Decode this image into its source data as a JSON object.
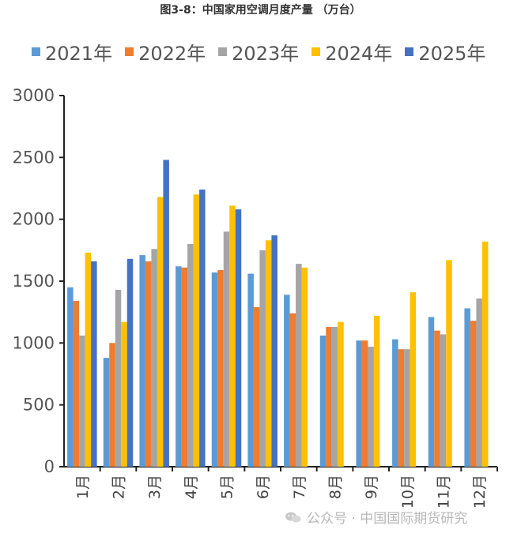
{
  "chart_data": {
    "type": "bar",
    "title": "图3-8：中国家用空调月度产量 （万台）",
    "categories": [
      "1月",
      "2月",
      "3月",
      "4月",
      "5月",
      "6月",
      "7月",
      "8月",
      "9月",
      "10月",
      "11月",
      "12月"
    ],
    "series": [
      {
        "name": "2021年",
        "color": "#5b9bd5",
        "values": [
          1450,
          880,
          1710,
          1620,
          1570,
          1560,
          1390,
          1060,
          1020,
          1030,
          1210,
          1280
        ]
      },
      {
        "name": "2022年",
        "color": "#ed7d31",
        "values": [
          1340,
          1000,
          1660,
          1610,
          1590,
          1290,
          1240,
          1130,
          1020,
          950,
          1100,
          1180
        ]
      },
      {
        "name": "2023年",
        "color": "#a5a5a5",
        "values": [
          1060,
          1430,
          1760,
          1800,
          1900,
          1750,
          1640,
          1130,
          970,
          950,
          1070,
          1360
        ]
      },
      {
        "name": "2024年",
        "color": "#ffc000",
        "values": [
          1730,
          1170,
          2180,
          2200,
          2110,
          1830,
          1610,
          1170,
          1220,
          1410,
          1670,
          1820
        ]
      },
      {
        "name": "2025年",
        "color": "#4472c4",
        "values": [
          1660,
          1680,
          2480,
          2240,
          2080,
          1870,
          null,
          null,
          null,
          null,
          null,
          null
        ]
      }
    ],
    "ylim": [
      0,
      3000
    ],
    "yticks": [
      0,
      500,
      1000,
      1500,
      2000,
      2500,
      3000
    ],
    "legend_position": "top",
    "grid": false
  },
  "watermark": {
    "text": "公众号 · 中国国际期货研究",
    "icon": "wechat-icon"
  }
}
